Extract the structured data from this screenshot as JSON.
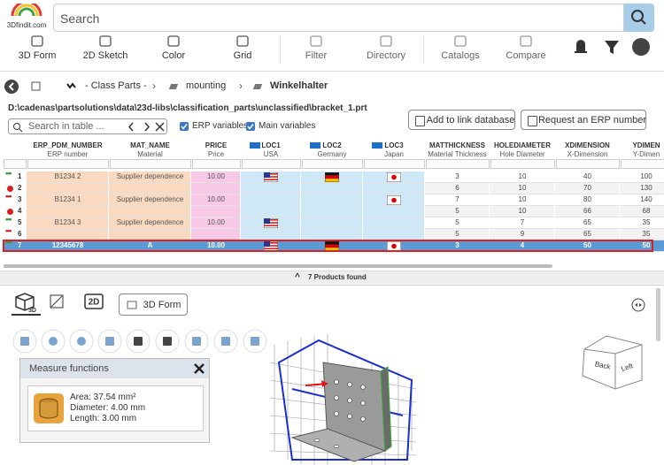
{
  "header": {
    "logo": "3Dfindit.com",
    "search_placeholder": "Search"
  },
  "toolbar": [
    "3D Form",
    "2D Sketch",
    "Color",
    "Grid",
    "Filter",
    "Directory",
    "Catalogs",
    "Compare"
  ],
  "breadcrumb": [
    "- Class Parts -",
    "mounting",
    "Winkelhalter"
  ],
  "path": "D:\\cadenas\\partsolutions\\data\\23d-libs\\classification_parts\\unclassified\\bracket_1.prt",
  "table_search_placeholder": "Search in table ...",
  "checkboxes": [
    "ERP variables",
    "Main variables"
  ],
  "buttons": [
    "Add to link database",
    "Request an ERP number"
  ],
  "table": {
    "columns": [
      {
        "name": "ERP_PDM_NUMBER",
        "sub": "ERP number"
      },
      {
        "name": "MAT_NAME",
        "sub": "Material"
      },
      {
        "name": "PRICE",
        "sub": "Price"
      },
      {
        "name": "LOC1",
        "sub": "USA"
      },
      {
        "name": "LOC2",
        "sub": "Germany"
      },
      {
        "name": "LOC3",
        "sub": "Japan"
      },
      {
        "name": "MATTHICKNESS",
        "sub": "Material Thickness"
      },
      {
        "name": "HOLEDIAMETER",
        "sub": "Hole Diameter"
      },
      {
        "name": "XDIMENSION",
        "sub": "X-Dimension"
      },
      {
        "name": "YDIMEN",
        "sub": "Y-Dimen"
      }
    ],
    "rows": [
      {
        "marker": "dots",
        "marker_color": "#3a9a3a",
        "no": "1",
        "erp": "B1234 2",
        "mat": "Supplier dependence",
        "price": "10.00",
        "loc": [
          true,
          true,
          true
        ],
        "dims": [
          "3",
          "10",
          "40",
          "100"
        ]
      },
      {
        "marker": "dot",
        "marker_color": "#d62020",
        "no": "2",
        "loc": [
          false,
          false,
          false
        ],
        "dims": [
          "6",
          "10",
          "70",
          "130"
        ]
      },
      {
        "marker": "dots",
        "marker_color": "#d62020",
        "no": "3",
        "erp": "B1234 1",
        "mat": "Supplier dependence",
        "price": "10.00",
        "loc": [
          false,
          false,
          true
        ],
        "dims": [
          "7",
          "10",
          "80",
          "140"
        ]
      },
      {
        "marker": "dot",
        "marker_color": "#d62020",
        "no": "4",
        "loc": [
          false,
          false,
          false
        ],
        "dims": [
          "5",
          "10",
          "66",
          "68"
        ]
      },
      {
        "marker": "dots",
        "marker_color": "#3a9a3a",
        "no": "5",
        "erp": "B1234 3",
        "mat": "Supplier dependence",
        "price": "10.00",
        "loc": [
          true,
          false,
          false
        ],
        "dims": [
          "5",
          "7",
          "65",
          "35"
        ]
      },
      {
        "marker": "dots",
        "marker_color": "#d62020",
        "no": "6",
        "loc": [
          false,
          false,
          false
        ],
        "dims": [
          "5",
          "9",
          "65",
          "35"
        ]
      },
      {
        "marker": "dots",
        "marker_color": "#3a9a3a",
        "no": "7",
        "erp": "12345678",
        "mat": "A",
        "price": "10.00",
        "loc": [
          true,
          true,
          true
        ],
        "dims": [
          "3",
          "4",
          "50",
          "50"
        ],
        "selected": true
      }
    ],
    "footer": "7 Products found"
  },
  "viewer": {
    "tabs": [
      "2D"
    ],
    "form_button": "3D Form",
    "measure": {
      "title": "Measure functions",
      "lines": [
        "Area: 37.54 mm²",
        "Diameter: 4.00 mm",
        "Length: 3.00 mm"
      ]
    },
    "cube": [
      "Back",
      "Left"
    ]
  }
}
